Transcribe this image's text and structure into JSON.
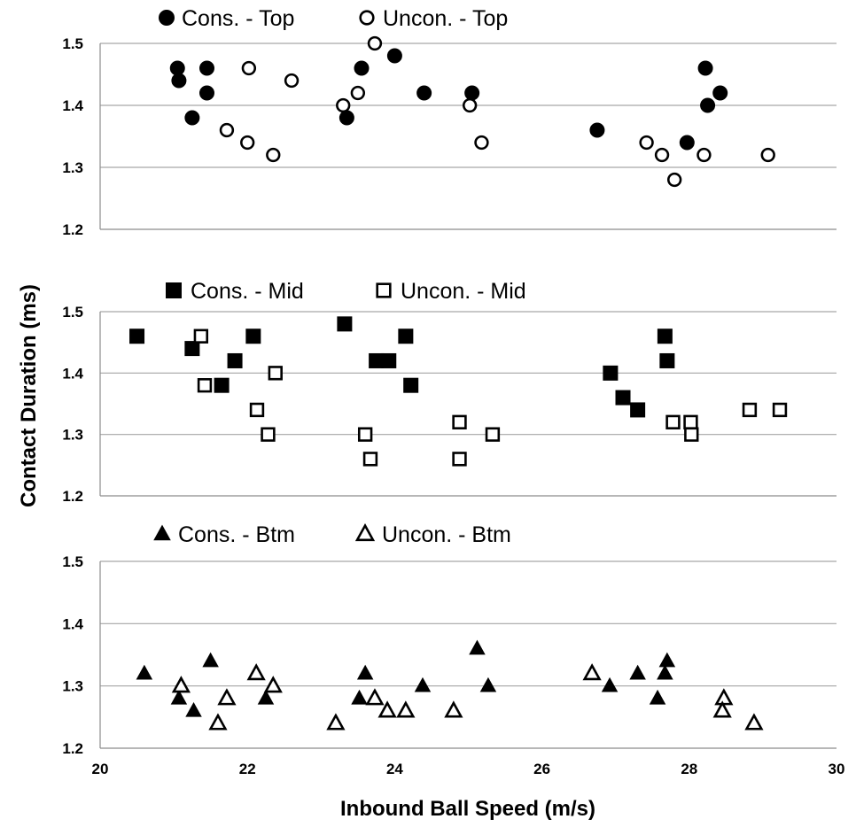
{
  "chart_data": {
    "type": "scatter",
    "xlabel": "Inbound Ball Speed (m/s)",
    "ylabel": "Contact Duration (ms)",
    "xlim": [
      20,
      30
    ],
    "xticks": [
      "20",
      "22",
      "24",
      "26",
      "28",
      "30"
    ],
    "grid": "horizontal",
    "panels": [
      {
        "id": "top",
        "ylim": [
          1.2,
          1.5
        ],
        "yticks": [
          "1.2",
          "1.3",
          "1.4",
          "1.5"
        ],
        "series": [
          {
            "name": "Cons. - Top",
            "marker": "circle",
            "fill": "filled",
            "points": [
              [
                21.05,
                1.46
              ],
              [
                21.07,
                1.44
              ],
              [
                21.25,
                1.38
              ],
              [
                21.45,
                1.46
              ],
              [
                21.45,
                1.42
              ],
              [
                23.35,
                1.38
              ],
              [
                23.55,
                1.46
              ],
              [
                24.0,
                1.48
              ],
              [
                24.4,
                1.42
              ],
              [
                25.05,
                1.42
              ],
              [
                26.75,
                1.36
              ],
              [
                27.97,
                1.34
              ],
              [
                28.22,
                1.46
              ],
              [
                28.25,
                1.4
              ],
              [
                28.42,
                1.42
              ]
            ]
          },
          {
            "name": "Uncon. - Top",
            "marker": "circle",
            "fill": "hollow",
            "points": [
              [
                21.72,
                1.36
              ],
              [
                22.0,
                1.34
              ],
              [
                22.02,
                1.46
              ],
              [
                22.35,
                1.32
              ],
              [
                22.6,
                1.44
              ],
              [
                23.3,
                1.4
              ],
              [
                23.5,
                1.42
              ],
              [
                23.73,
                1.5
              ],
              [
                25.02,
                1.4
              ],
              [
                25.18,
                1.34
              ],
              [
                27.42,
                1.34
              ],
              [
                27.63,
                1.32
              ],
              [
                27.8,
                1.28
              ],
              [
                28.2,
                1.32
              ],
              [
                29.07,
                1.32
              ]
            ]
          }
        ]
      },
      {
        "id": "mid",
        "ylim": [
          1.2,
          1.5
        ],
        "yticks": [
          "1.2",
          "1.3",
          "1.4",
          "1.5"
        ],
        "series": [
          {
            "name": "Cons. - Mid",
            "marker": "square",
            "fill": "filled",
            "points": [
              [
                20.5,
                1.46
              ],
              [
                21.25,
                1.44
              ],
              [
                21.65,
                1.38
              ],
              [
                21.83,
                1.42
              ],
              [
                22.08,
                1.46
              ],
              [
                23.32,
                1.48
              ],
              [
                23.75,
                1.42
              ],
              [
                23.92,
                1.42
              ],
              [
                24.15,
                1.46
              ],
              [
                24.22,
                1.38
              ],
              [
                26.93,
                1.4
              ],
              [
                27.1,
                1.36
              ],
              [
                27.3,
                1.34
              ],
              [
                27.67,
                1.46
              ],
              [
                27.7,
                1.42
              ]
            ]
          },
          {
            "name": "Uncon. - Mid",
            "marker": "square",
            "fill": "hollow",
            "points": [
              [
                21.37,
                1.46
              ],
              [
                21.42,
                1.38
              ],
              [
                22.13,
                1.34
              ],
              [
                22.28,
                1.3
              ],
              [
                22.38,
                1.4
              ],
              [
                23.6,
                1.3
              ],
              [
                23.67,
                1.26
              ],
              [
                24.88,
                1.32
              ],
              [
                24.88,
                1.26
              ],
              [
                25.33,
                1.3
              ],
              [
                27.78,
                1.32
              ],
              [
                28.02,
                1.32
              ],
              [
                28.03,
                1.3
              ],
              [
                28.82,
                1.34
              ],
              [
                29.23,
                1.34
              ]
            ]
          }
        ]
      },
      {
        "id": "btm",
        "ylim": [
          1.2,
          1.5
        ],
        "yticks": [
          "1.2",
          "1.3",
          "1.4",
          "1.5"
        ],
        "series": [
          {
            "name": "Cons. - Btm",
            "marker": "triangle",
            "fill": "filled",
            "points": [
              [
                20.6,
                1.32
              ],
              [
                21.07,
                1.28
              ],
              [
                21.27,
                1.26
              ],
              [
                21.5,
                1.34
              ],
              [
                22.25,
                1.28
              ],
              [
                23.52,
                1.28
              ],
              [
                23.6,
                1.32
              ],
              [
                24.38,
                1.3
              ],
              [
                25.12,
                1.36
              ],
              [
                25.27,
                1.3
              ],
              [
                26.92,
                1.3
              ],
              [
                27.3,
                1.32
              ],
              [
                27.57,
                1.28
              ],
              [
                27.67,
                1.32
              ],
              [
                27.7,
                1.34
              ]
            ]
          },
          {
            "name": "Uncon. - Btm",
            "marker": "triangle",
            "fill": "hollow",
            "points": [
              [
                21.1,
                1.3
              ],
              [
                21.6,
                1.24
              ],
              [
                21.72,
                1.28
              ],
              [
                22.12,
                1.32
              ],
              [
                22.35,
                1.3
              ],
              [
                23.2,
                1.24
              ],
              [
                23.73,
                1.28
              ],
              [
                23.9,
                1.26
              ],
              [
                24.15,
                1.26
              ],
              [
                24.8,
                1.26
              ],
              [
                26.68,
                1.32
              ],
              [
                28.47,
                1.28
              ],
              [
                28.45,
                1.26
              ],
              [
                28.88,
                1.24
              ]
            ]
          }
        ]
      }
    ]
  }
}
